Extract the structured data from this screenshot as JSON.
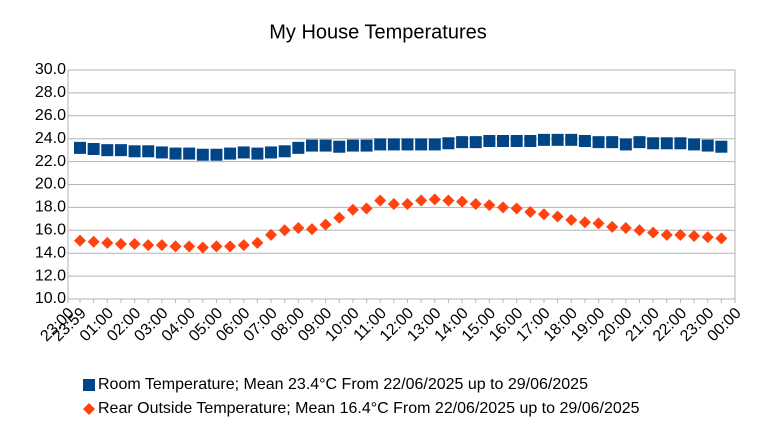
{
  "chart_data": {
    "type": "scatter",
    "title": "My House Temperatures",
    "categories": [
      "23:00",
      "23:59",
      null,
      "01:00",
      null,
      "02:00",
      null,
      "03:00",
      null,
      "04:00",
      null,
      "05:00",
      null,
      "06:00",
      null,
      "07:00",
      null,
      "08:00",
      null,
      "09:00",
      null,
      "10:00",
      null,
      "11:00",
      null,
      "12:00",
      null,
      "13:00",
      null,
      "14:00",
      null,
      "15:00",
      null,
      "16:00",
      null,
      "17:00",
      null,
      "18:00",
      null,
      "19:00",
      null,
      "20:00",
      null,
      "21:00",
      null,
      "22:00",
      null,
      "23:00",
      null,
      "00:00"
    ],
    "series": [
      {
        "name": "Room Temperature; Mean 23.4°C From 22/06/2025 up to 29/06/2025",
        "color": "#004586",
        "marker": "square",
        "values": [
          null,
          23.2,
          23.1,
          23.0,
          23.0,
          22.9,
          22.9,
          22.8,
          22.7,
          22.7,
          22.6,
          22.6,
          22.7,
          22.8,
          22.7,
          22.8,
          22.9,
          23.2,
          23.4,
          23.4,
          23.3,
          23.4,
          23.4,
          23.5,
          23.5,
          23.5,
          23.5,
          23.5,
          23.6,
          23.7,
          23.7,
          23.8,
          23.8,
          23.8,
          23.8,
          23.9,
          23.9,
          23.9,
          23.8,
          23.7,
          23.7,
          23.5,
          23.7,
          23.6,
          23.6,
          23.6,
          23.5,
          23.4,
          23.3,
          null
        ]
      },
      {
        "name": "Rear Outside Temperature; Mean 16.4°C From 22/06/2025 up to 29/06/2025",
        "color": "#ff420e",
        "marker": "diamond",
        "values": [
          null,
          15.1,
          15.0,
          14.9,
          14.8,
          14.8,
          14.7,
          14.7,
          14.6,
          14.6,
          14.5,
          14.6,
          14.6,
          14.7,
          14.9,
          15.6,
          16.0,
          16.2,
          16.1,
          16.5,
          17.1,
          17.8,
          17.9,
          18.6,
          18.3,
          18.3,
          18.6,
          18.7,
          18.6,
          18.5,
          18.3,
          18.2,
          18.0,
          17.9,
          17.6,
          17.4,
          17.2,
          16.9,
          16.7,
          16.6,
          16.3,
          16.2,
          16.0,
          15.8,
          15.6,
          15.6,
          15.5,
          15.4,
          15.3,
          null
        ]
      }
    ],
    "ylim": [
      10,
      30
    ],
    "yticks": [
      {
        "value": 10,
        "label": "10.0"
      },
      {
        "value": 12,
        "label": "12.0"
      },
      {
        "value": 14,
        "label": "14.0"
      },
      {
        "value": 16,
        "label": "16.0"
      },
      {
        "value": 18,
        "label": "18.0"
      },
      {
        "value": 20,
        "label": "20.0"
      },
      {
        "value": 22,
        "label": "22.0"
      },
      {
        "value": 24,
        "label": "24.0"
      },
      {
        "value": 26,
        "label": "26.0"
      },
      {
        "value": 28,
        "label": "28.0"
      },
      {
        "value": 30,
        "label": "30.0"
      }
    ],
    "grid": true
  }
}
